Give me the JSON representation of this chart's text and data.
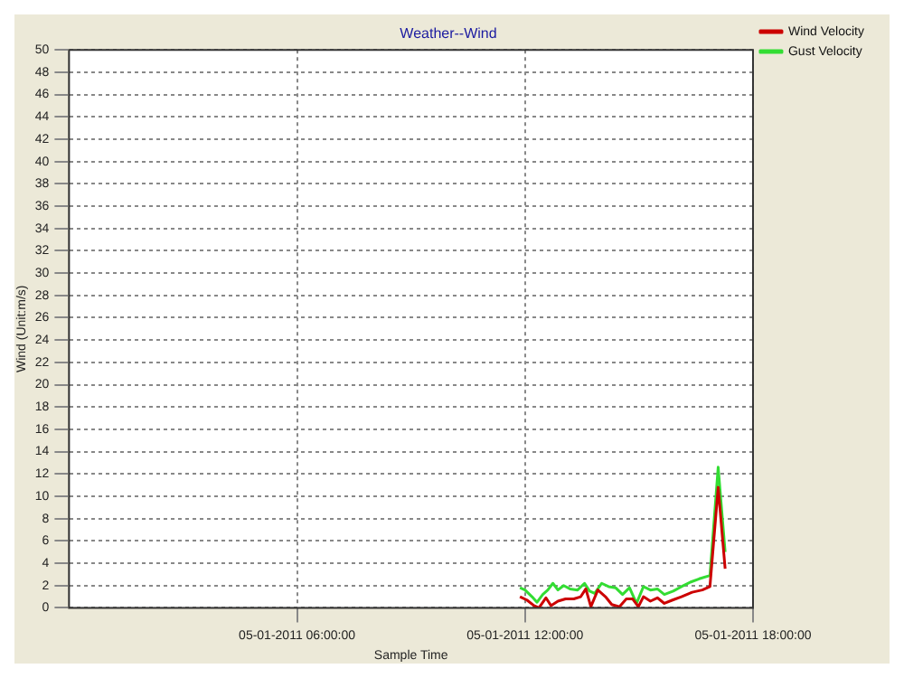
{
  "chart_data": {
    "type": "line",
    "title": "Weather--Wind",
    "xlabel": "Sample Time",
    "ylabel": "Wind (Unit:m/s)",
    "xlim": [
      "2011-05-01T00:00",
      "2011-05-01T18:00"
    ],
    "xticks": [
      {
        "value": "2011-05-01T06:00",
        "label": "05-01-2011 06:00:00"
      },
      {
        "value": "2011-05-01T12:00",
        "label": "05-01-2011 12:00:00"
      },
      {
        "value": "2011-05-01T18:00",
        "label": "05-01-2011 18:00:00"
      }
    ],
    "ylim": [
      0,
      50
    ],
    "yticks": [
      0,
      2,
      4,
      6,
      8,
      10,
      12,
      14,
      16,
      18,
      20,
      22,
      24,
      26,
      28,
      30,
      32,
      34,
      36,
      38,
      40,
      42,
      44,
      46,
      48,
      50
    ],
    "grid": true,
    "legend": "top right",
    "marker": "none",
    "line_style": "solid",
    "series": [
      {
        "name": "Wind Velocity",
        "color": "#cc0000",
        "x": [
          "2011-05-01T11:52",
          "2011-05-01T12:03",
          "2011-05-01T12:14",
          "2011-05-01T12:22",
          "2011-05-01T12:33",
          "2011-05-01T12:41",
          "2011-05-01T12:52",
          "2011-05-01T13:04",
          "2011-05-01T13:17",
          "2011-05-01T13:28",
          "2011-05-01T13:36",
          "2011-05-01T13:44",
          "2011-05-01T13:55",
          "2011-05-01T14:07",
          "2011-05-01T14:17",
          "2011-05-01T14:29",
          "2011-05-01T14:40",
          "2011-05-01T14:50",
          "2011-05-01T14:59",
          "2011-05-01T15:07",
          "2011-05-01T15:18",
          "2011-05-01T15:29",
          "2011-05-01T15:40",
          "2011-05-01T15:53",
          "2011-05-01T16:07",
          "2011-05-01T16:24",
          "2011-05-01T16:40",
          "2011-05-01T16:52",
          "2011-05-01T17:05",
          "2011-05-01T17:16"
        ],
        "values": [
          1.0,
          0.7,
          0.2,
          0.0,
          0.9,
          0.2,
          0.6,
          0.8,
          0.8,
          1.0,
          1.7,
          0.1,
          1.6,
          1.0,
          0.3,
          0.1,
          0.8,
          0.8,
          0.1,
          1.0,
          0.6,
          0.9,
          0.4,
          0.7,
          1.0,
          1.4,
          1.6,
          1.9,
          10.8,
          3.5
        ]
      },
      {
        "name": "Gust Velocity",
        "color": "#33dd33",
        "x": [
          "2011-05-01T11:52",
          "2011-05-01T12:00",
          "2011-05-01T12:11",
          "2011-05-01T12:19",
          "2011-05-01T12:28",
          "2011-05-01T12:36",
          "2011-05-01T12:44",
          "2011-05-01T12:52",
          "2011-05-01T13:01",
          "2011-05-01T13:11",
          "2011-05-01T13:23",
          "2011-05-01T13:34",
          "2011-05-01T13:42",
          "2011-05-01T13:50",
          "2011-05-01T14:01",
          "2011-05-01T14:12",
          "2011-05-01T14:23",
          "2011-05-01T14:34",
          "2011-05-01T14:45",
          "2011-05-01T14:56",
          "2011-05-01T15:07",
          "2011-05-01T15:18",
          "2011-05-01T15:29",
          "2011-05-01T15:40",
          "2011-05-01T15:54",
          "2011-05-01T16:07",
          "2011-05-01T16:21",
          "2011-05-01T16:35",
          "2011-05-01T16:52",
          "2011-05-01T17:05",
          "2011-05-01T17:16"
        ],
        "values": [
          1.8,
          1.6,
          1.0,
          0.5,
          1.2,
          1.6,
          2.2,
          1.6,
          2.0,
          1.7,
          1.6,
          2.2,
          1.5,
          1.3,
          2.2,
          1.9,
          1.8,
          1.2,
          1.8,
          0.4,
          1.9,
          1.6,
          1.7,
          1.2,
          1.5,
          1.9,
          2.3,
          2.6,
          2.9,
          12.6,
          5.0
        ]
      }
    ]
  }
}
